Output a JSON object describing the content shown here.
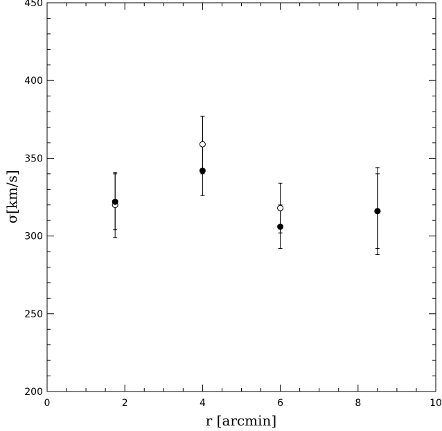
{
  "chart_data": {
    "type": "scatter",
    "title": "",
    "xlabel": "r [arcmin]",
    "ylabel": "σ[km/s]",
    "xlim": [
      0,
      10
    ],
    "ylim": [
      200,
      450
    ],
    "x_major_ticks": [
      0,
      2,
      4,
      6,
      8,
      10
    ],
    "x_minor_step": 0.5,
    "y_major_ticks": [
      200,
      250,
      300,
      350,
      400,
      450
    ],
    "y_minor_step": 10,
    "grid": false,
    "series": [
      {
        "marker": "filled-circle",
        "color": "#000000",
        "points": [
          {
            "x": 1.75,
            "y": 322,
            "yerr_low": 304,
            "yerr_high": 340
          },
          {
            "x": 4.0,
            "y": 342,
            "yerr_low": 326,
            "yerr_high": 377
          },
          {
            "x": 6.0,
            "y": 306,
            "yerr_low": 292,
            "yerr_high": 320
          },
          {
            "x": 8.5,
            "y": 316,
            "yerr_low": 292,
            "yerr_high": 340
          }
        ]
      },
      {
        "marker": "open-circle",
        "color": "#000000",
        "points": [
          {
            "x": 1.75,
            "y": 320,
            "yerr_low": 299,
            "yerr_high": 341
          },
          {
            "x": 4.0,
            "y": 359,
            "yerr_low": 340,
            "yerr_high": 377
          },
          {
            "x": 6.0,
            "y": 318,
            "yerr_low": 302,
            "yerr_high": 334
          },
          {
            "x": 8.5,
            "y": 316,
            "yerr_low": 288,
            "yerr_high": 344
          }
        ]
      }
    ]
  }
}
